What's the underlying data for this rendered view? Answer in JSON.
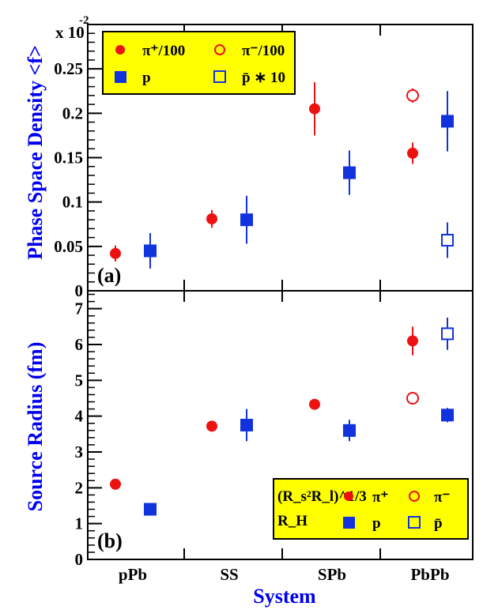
{
  "colors": {
    "pion": "#ee1111",
    "proton": "#1133dd",
    "legend_bg": "#ffff00",
    "axis_label": "#0000ee"
  },
  "chart_data": [
    {
      "type": "scatter",
      "panel_label": "(a)",
      "ylabel": "Phase Space Density <f>",
      "y_multiplier": "x 10",
      "y_multiplier_exp": "-2",
      "ylim": [
        0,
        0.3
      ],
      "yticks": [
        "0",
        "0.05",
        "0.1",
        "0.15",
        "0.2",
        "0.25"
      ],
      "categories": [
        "pPb",
        "SS",
        "SPb",
        "PbPb"
      ],
      "legend_position": "top-left",
      "legend": [
        {
          "symbol": "pi-plus",
          "label": "π⁺/100"
        },
        {
          "symbol": "pi-minus",
          "label": "π⁻/100"
        },
        {
          "symbol": "p",
          "label": "p"
        },
        {
          "symbol": "pbar",
          "label": "p̄ ∗ 10"
        }
      ],
      "series": [
        {
          "name": "π⁺/100",
          "marker": "filled-circle",
          "color": "pion",
          "offset": -1,
          "points": [
            {
              "cat": "pPb",
              "y": 0.042,
              "err": 0.009
            },
            {
              "cat": "SS",
              "y": 0.081,
              "err": 0.01
            },
            {
              "cat": "SPb",
              "y": 0.205,
              "err": 0.03
            },
            {
              "cat": "PbPb",
              "y": 0.155,
              "err": 0.012
            }
          ]
        },
        {
          "name": "π⁻/100",
          "marker": "open-circle",
          "color": "pion",
          "offset": -1,
          "points": [
            {
              "cat": "PbPb",
              "y": 0.22,
              "err": 0.008
            }
          ]
        },
        {
          "name": "p",
          "marker": "filled-square",
          "color": "proton",
          "offset": 1,
          "points": [
            {
              "cat": "pPb",
              "y": 0.045,
              "err": 0.02
            },
            {
              "cat": "SS",
              "y": 0.08,
              "err": 0.027
            },
            {
              "cat": "SPb",
              "y": 0.133,
              "err": 0.025
            },
            {
              "cat": "PbPb",
              "y": 0.191,
              "err": 0.034
            }
          ]
        },
        {
          "name": "p̄ ∗ 10",
          "marker": "open-square",
          "color": "proton",
          "offset": 1,
          "points": [
            {
              "cat": "PbPb",
              "y": 0.057,
              "err": 0.02
            }
          ]
        }
      ]
    },
    {
      "type": "scatter",
      "panel_label": "(b)",
      "ylabel": "Source Radius (fm)",
      "xlabel": "System",
      "ylim": [
        0,
        7.5
      ],
      "yticks": [
        "0",
        "1",
        "2",
        "3",
        "4",
        "5",
        "6",
        "7"
      ],
      "categories": [
        "pPb",
        "SS",
        "SPb",
        "PbPb"
      ],
      "legend_position": "bottom-right",
      "legend": [
        {
          "symbol": "pi-plus",
          "row_label": "(R_s²R_l)^1/3",
          "label": "π⁺"
        },
        {
          "symbol": "pi-minus",
          "label": "π⁻"
        },
        {
          "symbol": "p",
          "row_label": "R_H",
          "label": "p"
        },
        {
          "symbol": "pbar",
          "label": "p̄"
        }
      ],
      "series": [
        {
          "name": "(R_s²R_l)^1/3 π⁺",
          "marker": "filled-circle",
          "color": "pion",
          "offset": -1,
          "points": [
            {
              "cat": "pPb",
              "y": 2.1,
              "err": 0.15
            },
            {
              "cat": "SS",
              "y": 3.72,
              "err": 0.15
            },
            {
              "cat": "SPb",
              "y": 4.33,
              "err": 0.15
            },
            {
              "cat": "PbPb",
              "y": 6.1,
              "err": 0.4
            }
          ]
        },
        {
          "name": "(R_s²R_l)^1/3 π⁻",
          "marker": "open-circle",
          "color": "pion",
          "offset": -1,
          "points": [
            {
              "cat": "PbPb",
              "y": 4.5,
              "err": 0.1
            }
          ]
        },
        {
          "name": "R_H p",
          "marker": "filled-square",
          "color": "proton",
          "offset": 1,
          "points": [
            {
              "cat": "pPb",
              "y": 1.4,
              "err": 0.1
            },
            {
              "cat": "SS",
              "y": 3.75,
              "err": 0.45
            },
            {
              "cat": "SPb",
              "y": 3.6,
              "err": 0.3
            },
            {
              "cat": "PbPb",
              "y": 4.03,
              "err": 0.2
            }
          ]
        },
        {
          "name": "R_H p̄",
          "marker": "open-square",
          "color": "proton",
          "offset": 1,
          "points": [
            {
              "cat": "PbPb",
              "y": 6.3,
              "err": 0.45
            }
          ]
        }
      ]
    }
  ]
}
